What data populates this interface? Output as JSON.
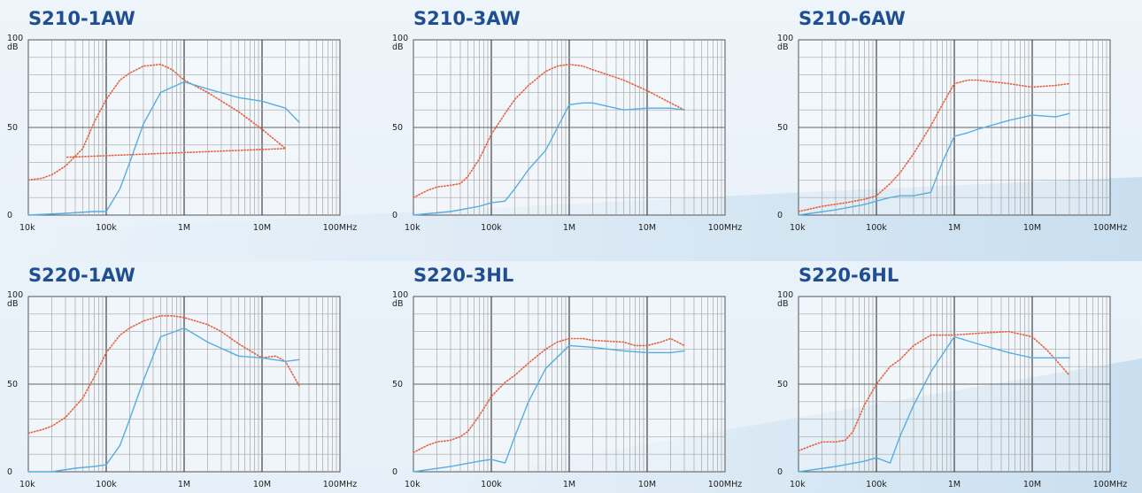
{
  "chart_data": [
    {
      "type": "line",
      "title": "S210-1AW",
      "x_scale": "log",
      "xlim": [
        "10k",
        "100MHz"
      ],
      "ylim": [
        0,
        100
      ],
      "y_unit": "dB",
      "x_ticks": [
        "10k",
        "100k",
        "1M",
        "10M",
        "100MHz"
      ],
      "y_ticks": [
        "100",
        "50",
        "0"
      ],
      "series": [
        {
          "color": "#e8603c",
          "style": "dotted",
          "points": [
            [
              10000,
              20
            ],
            [
              15000,
              21
            ],
            [
              20000,
              23
            ],
            [
              30000,
              28
            ],
            [
              50000,
              38
            ],
            [
              70000,
              53
            ],
            [
              100000,
              66
            ],
            [
              150000,
              77
            ],
            [
              200000,
              81
            ],
            [
              300000,
              85
            ],
            [
              500000,
              86
            ],
            [
              700000,
              83
            ],
            [
              1000000,
              77
            ],
            [
              2000000,
              70
            ],
            [
              5000000,
              59
            ],
            [
              10000000,
              49
            ],
            [
              20000000,
              38
            ],
            [
              30000,
              33
            ]
          ]
        },
        {
          "color": "#56aee0",
          "style": "solid",
          "points": [
            [
              10000,
              0
            ],
            [
              30000,
              1
            ],
            [
              70000,
              2
            ],
            [
              100000,
              2
            ],
            [
              150000,
              15
            ],
            [
              200000,
              30
            ],
            [
              300000,
              52
            ],
            [
              500000,
              70
            ],
            [
              1000000,
              76
            ],
            [
              2000000,
              72
            ],
            [
              5000000,
              67
            ],
            [
              10000000,
              65
            ],
            [
              20000000,
              61
            ],
            [
              30000000,
              53
            ]
          ]
        }
      ]
    },
    {
      "type": "line",
      "title": "S210-3AW",
      "x_scale": "log",
      "xlim": [
        "10k",
        "100MHz"
      ],
      "ylim": [
        0,
        100
      ],
      "y_unit": "dB",
      "x_ticks": [
        "10k",
        "100k",
        "1M",
        "10M",
        "100MHz"
      ],
      "y_ticks": [
        "100",
        "50",
        "0"
      ],
      "series": [
        {
          "color": "#e8603c",
          "style": "dotted",
          "points": [
            [
              10000,
              10
            ],
            [
              15000,
              14
            ],
            [
              20000,
              16
            ],
            [
              30000,
              17
            ],
            [
              40000,
              18
            ],
            [
              50000,
              22
            ],
            [
              70000,
              32
            ],
            [
              100000,
              46
            ],
            [
              150000,
              58
            ],
            [
              200000,
              66
            ],
            [
              300000,
              74
            ],
            [
              500000,
              82
            ],
            [
              700000,
              85
            ],
            [
              1000000,
              86
            ],
            [
              1500000,
              85
            ],
            [
              2000000,
              83
            ],
            [
              5000000,
              77
            ],
            [
              10000000,
              71
            ],
            [
              20000000,
              64
            ],
            [
              30000000,
              60
            ]
          ]
        },
        {
          "color": "#56aee0",
          "style": "solid",
          "points": [
            [
              10000,
              0
            ],
            [
              30000,
              2
            ],
            [
              70000,
              5
            ],
            [
              100000,
              7
            ],
            [
              150000,
              8
            ],
            [
              200000,
              15
            ],
            [
              300000,
              26
            ],
            [
              500000,
              37
            ],
            [
              1000000,
              63
            ],
            [
              1500000,
              64
            ],
            [
              2000000,
              64
            ],
            [
              5000000,
              60
            ],
            [
              10000000,
              61
            ],
            [
              20000000,
              61
            ],
            [
              30000000,
              60
            ]
          ]
        }
      ]
    },
    {
      "type": "line",
      "title": "S210-6AW",
      "x_scale": "log",
      "xlim": [
        "10k",
        "100MHz"
      ],
      "ylim": [
        0,
        100
      ],
      "y_unit": "dB",
      "x_ticks": [
        "10k",
        "100k",
        "1M",
        "10M",
        "100MHz"
      ],
      "y_ticks": [
        "100",
        "50",
        "0"
      ],
      "series": [
        {
          "color": "#e8603c",
          "style": "dotted",
          "points": [
            [
              10000,
              2
            ],
            [
              20000,
              5
            ],
            [
              40000,
              7
            ],
            [
              70000,
              9
            ],
            [
              100000,
              11
            ],
            [
              150000,
              18
            ],
            [
              200000,
              24
            ],
            [
              300000,
              35
            ],
            [
              500000,
              51
            ],
            [
              700000,
              63
            ],
            [
              1000000,
              75
            ],
            [
              1500000,
              77
            ],
            [
              2000000,
              77
            ],
            [
              5000000,
              75
            ],
            [
              10000000,
              73
            ],
            [
              20000000,
              74
            ],
            [
              30000000,
              75
            ]
          ]
        },
        {
          "color": "#56aee0",
          "style": "solid",
          "points": [
            [
              10000,
              0
            ],
            [
              30000,
              3
            ],
            [
              70000,
              6
            ],
            [
              100000,
              8
            ],
            [
              150000,
              10
            ],
            [
              200000,
              11
            ],
            [
              300000,
              11
            ],
            [
              500000,
              13
            ],
            [
              700000,
              30
            ],
            [
              1000000,
              45
            ],
            [
              1500000,
              47
            ],
            [
              2000000,
              49
            ],
            [
              5000000,
              54
            ],
            [
              10000000,
              57
            ],
            [
              20000000,
              56
            ],
            [
              30000000,
              58
            ]
          ]
        }
      ]
    },
    {
      "type": "line",
      "title": "S220-1AW",
      "x_scale": "log",
      "xlim": [
        "10k",
        "100MHz"
      ],
      "ylim": [
        0,
        100
      ],
      "y_unit": "dB",
      "x_ticks": [
        "10k",
        "100k",
        "1M",
        "10M",
        "100MHz"
      ],
      "y_ticks": [
        "100",
        "50",
        "0"
      ],
      "series": [
        {
          "color": "#e8603c",
          "style": "dotted",
          "points": [
            [
              10000,
              22
            ],
            [
              15000,
              24
            ],
            [
              20000,
              26
            ],
            [
              30000,
              31
            ],
            [
              50000,
              42
            ],
            [
              70000,
              54
            ],
            [
              100000,
              68
            ],
            [
              150000,
              78
            ],
            [
              200000,
              82
            ],
            [
              300000,
              86
            ],
            [
              500000,
              89
            ],
            [
              700000,
              89
            ],
            [
              1000000,
              88
            ],
            [
              2000000,
              84
            ],
            [
              3000000,
              80
            ],
            [
              5000000,
              73
            ],
            [
              10000000,
              65
            ],
            [
              15000000,
              66
            ],
            [
              20000000,
              63
            ],
            [
              30000000,
              49
            ]
          ]
        },
        {
          "color": "#56aee0",
          "style": "solid",
          "points": [
            [
              10000,
              0
            ],
            [
              20000,
              0
            ],
            [
              40000,
              2
            ],
            [
              70000,
              3
            ],
            [
              100000,
              4
            ],
            [
              150000,
              15
            ],
            [
              200000,
              30
            ],
            [
              300000,
              52
            ],
            [
              500000,
              77
            ],
            [
              1000000,
              82
            ],
            [
              2000000,
              74
            ],
            [
              5000000,
              66
            ],
            [
              10000000,
              65
            ],
            [
              20000000,
              63
            ],
            [
              30000000,
              64
            ]
          ]
        }
      ]
    },
    {
      "type": "line",
      "title": "S220-3HL",
      "x_scale": "log",
      "xlim": [
        "10k",
        "100MHz"
      ],
      "ylim": [
        0,
        100
      ],
      "y_unit": "dB",
      "x_ticks": [
        "10k",
        "100k",
        "1M",
        "10M",
        "100MHz"
      ],
      "y_ticks": [
        "100",
        "50",
        "0"
      ],
      "series": [
        {
          "color": "#e8603c",
          "style": "dotted",
          "points": [
            [
              10000,
              11
            ],
            [
              15000,
              15
            ],
            [
              20000,
              17
            ],
            [
              30000,
              18
            ],
            [
              40000,
              20
            ],
            [
              50000,
              23
            ],
            [
              70000,
              32
            ],
            [
              100000,
              43
            ],
            [
              150000,
              51
            ],
            [
              200000,
              55
            ],
            [
              300000,
              62
            ],
            [
              500000,
              70
            ],
            [
              700000,
              74
            ],
            [
              1000000,
              76
            ],
            [
              1500000,
              76
            ],
            [
              2000000,
              75
            ],
            [
              5000000,
              74
            ],
            [
              7000000,
              72
            ],
            [
              10000000,
              72
            ],
            [
              15000000,
              74
            ],
            [
              20000000,
              76
            ],
            [
              30000000,
              72
            ]
          ]
        },
        {
          "color": "#56aee0",
          "style": "solid",
          "points": [
            [
              10000,
              0
            ],
            [
              30000,
              3
            ],
            [
              70000,
              6
            ],
            [
              100000,
              7
            ],
            [
              150000,
              5
            ],
            [
              200000,
              20
            ],
            [
              300000,
              40
            ],
            [
              500000,
              59
            ],
            [
              1000000,
              72
            ],
            [
              2000000,
              71
            ],
            [
              5000000,
              69
            ],
            [
              10000000,
              68
            ],
            [
              20000000,
              68
            ],
            [
              30000000,
              69
            ]
          ]
        }
      ]
    },
    {
      "type": "line",
      "title": "S220-6HL",
      "x_scale": "log",
      "xlim": [
        "10k",
        "100MHz"
      ],
      "ylim": [
        0,
        100
      ],
      "y_unit": "dB",
      "x_ticks": [
        "10k",
        "100k",
        "1M",
        "10M",
        "100MHz"
      ],
      "y_ticks": [
        "100",
        "50",
        "0"
      ],
      "series": [
        {
          "color": "#e8603c",
          "style": "dotted",
          "points": [
            [
              10000,
              12
            ],
            [
              15000,
              15
            ],
            [
              20000,
              17
            ],
            [
              30000,
              17
            ],
            [
              40000,
              18
            ],
            [
              50000,
              23
            ],
            [
              70000,
              38
            ],
            [
              100000,
              50
            ],
            [
              150000,
              60
            ],
            [
              200000,
              64
            ],
            [
              300000,
              72
            ],
            [
              500000,
              78
            ],
            [
              1000000,
              78
            ],
            [
              2000000,
              79
            ],
            [
              5000000,
              80
            ],
            [
              10000000,
              77
            ],
            [
              15000000,
              70
            ],
            [
              20000000,
              64
            ],
            [
              30000000,
              55
            ]
          ]
        },
        {
          "color": "#56aee0",
          "style": "solid",
          "points": [
            [
              10000,
              0
            ],
            [
              30000,
              3
            ],
            [
              70000,
              6
            ],
            [
              100000,
              8
            ],
            [
              150000,
              5
            ],
            [
              200000,
              20
            ],
            [
              300000,
              38
            ],
            [
              500000,
              57
            ],
            [
              1000000,
              77
            ],
            [
              2000000,
              73
            ],
            [
              5000000,
              68
            ],
            [
              10000000,
              65
            ],
            [
              20000000,
              65
            ],
            [
              30000000,
              65
            ]
          ]
        }
      ]
    }
  ]
}
